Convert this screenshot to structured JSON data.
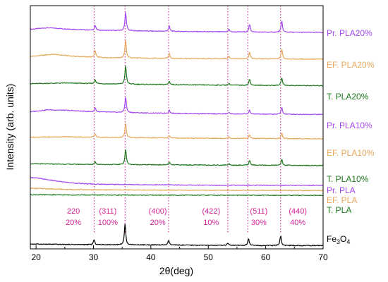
{
  "chart_data": {
    "type": "line",
    "xlabel": "2θ(deg)",
    "ylabel": "Intensity (arb. units)",
    "xlim": [
      19,
      70
    ],
    "xticks": [
      "20",
      "30",
      "40",
      "50",
      "60",
      "70"
    ],
    "grid": false,
    "reference_lines": [
      30.1,
      35.5,
      43.1,
      53.4,
      56.9,
      62.6
    ],
    "series": [
      {
        "name": "Pr. PLA20%",
        "color": "#a347f0",
        "offset": 9.65,
        "background": [
          [
            19,
            0.18
          ],
          [
            22,
            0.25
          ],
          [
            25,
            0.2
          ],
          [
            30,
            0.14
          ],
          [
            40,
            0.1
          ],
          [
            50,
            0.07
          ],
          [
            60,
            0.05
          ],
          [
            70,
            0.04
          ]
        ],
        "peaks": [
          [
            30.3,
            0.22
          ],
          [
            35.6,
            0.85
          ],
          [
            43.2,
            0.22
          ],
          [
            53.6,
            0.12
          ],
          [
            57.2,
            0.35
          ],
          [
            62.8,
            0.52
          ]
        ]
      },
      {
        "name": "EF. PLA20%",
        "color": "#e7a85b",
        "offset": 8.45,
        "background": [
          [
            19,
            0.15
          ],
          [
            23,
            0.25
          ],
          [
            27,
            0.15
          ],
          [
            32,
            0.1
          ],
          [
            40,
            0.07
          ],
          [
            50,
            0.05
          ],
          [
            60,
            0.04
          ],
          [
            70,
            0.03
          ]
        ],
        "peaks": [
          [
            30.3,
            0.28
          ],
          [
            35.6,
            0.82
          ],
          [
            43.2,
            0.22
          ],
          [
            53.6,
            0.1
          ],
          [
            57.2,
            0.32
          ],
          [
            62.8,
            0.46
          ]
        ]
      },
      {
        "name": "T. PLA20%",
        "color": "#1c7a1c",
        "offset": 7.25,
        "background": [
          [
            19,
            0.12
          ],
          [
            25,
            0.15
          ],
          [
            35,
            0.1
          ],
          [
            50,
            0.06
          ],
          [
            70,
            0.03
          ]
        ],
        "peaks": [
          [
            30.3,
            0.18
          ],
          [
            35.6,
            0.85
          ],
          [
            43.2,
            0.16
          ],
          [
            53.6,
            0.08
          ],
          [
            57.2,
            0.28
          ],
          [
            62.8,
            0.36
          ]
        ]
      },
      {
        "name": "Pr. PLA10%",
        "color": "#a347f0",
        "offset": 5.95,
        "background": [
          [
            19,
            0.15
          ],
          [
            22,
            0.24
          ],
          [
            25,
            0.22
          ],
          [
            30,
            0.15
          ],
          [
            40,
            0.09
          ],
          [
            50,
            0.06
          ],
          [
            60,
            0.04
          ],
          [
            70,
            0.03
          ]
        ],
        "peaks": [
          [
            30.3,
            0.18
          ],
          [
            35.6,
            0.72
          ],
          [
            43.2,
            0.14
          ],
          [
            53.6,
            0.08
          ],
          [
            57.2,
            0.18
          ],
          [
            62.8,
            0.32
          ]
        ]
      },
      {
        "name": "EF. PLA10%",
        "color": "#e7a85b",
        "offset": 4.85,
        "background": [
          [
            19,
            0.1
          ],
          [
            25,
            0.12
          ],
          [
            35,
            0.08
          ],
          [
            50,
            0.05
          ],
          [
            70,
            0.03
          ]
        ],
        "peaks": [
          [
            30.3,
            0.15
          ],
          [
            35.6,
            0.66
          ],
          [
            43.2,
            0.12
          ],
          [
            53.6,
            0.06
          ],
          [
            57.2,
            0.16
          ],
          [
            62.8,
            0.24
          ]
        ]
      },
      {
        "name": "T. PLA10%",
        "color": "#1c7a1c",
        "offset": 3.65,
        "background": [
          [
            19,
            0.1
          ],
          [
            25,
            0.08
          ],
          [
            35,
            0.06
          ],
          [
            50,
            0.04
          ],
          [
            70,
            0.02
          ]
        ],
        "peaks": [
          [
            30.3,
            0.12
          ],
          [
            35.6,
            0.7
          ],
          [
            43.2,
            0.12
          ],
          [
            53.6,
            0.06
          ],
          [
            57.2,
            0.22
          ],
          [
            62.8,
            0.28
          ]
        ]
      },
      {
        "name": "Pr. PLA",
        "color": "#a347f0",
        "offset": 2.73,
        "background": [
          [
            19,
            0.4
          ],
          [
            20,
            0.38
          ],
          [
            22,
            0.3
          ],
          [
            24,
            0.22
          ],
          [
            26,
            0.16
          ],
          [
            28,
            0.12
          ],
          [
            30,
            0.1
          ],
          [
            35,
            0.08
          ],
          [
            50,
            0.05
          ],
          [
            70,
            0.04
          ]
        ],
        "peaks": []
      },
      {
        "name": "EF. PLA",
        "color": "#e7a85b",
        "offset": 2.52,
        "background": [
          [
            19,
            0.12
          ],
          [
            22,
            0.1
          ],
          [
            25,
            0.07
          ],
          [
            30,
            0.05
          ],
          [
            50,
            0.03
          ],
          [
            70,
            0.02
          ]
        ],
        "peaks": []
      },
      {
        "name": "T. PLA",
        "color": "#1c7a1c",
        "offset": 2.3,
        "background": [
          [
            19,
            0.05
          ],
          [
            25,
            0.04
          ],
          [
            40,
            0.03
          ],
          [
            70,
            0.02
          ]
        ],
        "peaks": []
      },
      {
        "name": "Fe3O4",
        "color": "#000000",
        "offset": 0.0,
        "background": [
          [
            19,
            0.12
          ],
          [
            25,
            0.1
          ],
          [
            30,
            0.09
          ],
          [
            40,
            0.08
          ],
          [
            50,
            0.06
          ],
          [
            60,
            0.05
          ],
          [
            70,
            0.05
          ]
        ],
        "peaks": [
          [
            30.1,
            0.22
          ],
          [
            35.5,
            0.95
          ],
          [
            43.1,
            0.2
          ],
          [
            53.4,
            0.1
          ],
          [
            57.0,
            0.33
          ],
          [
            62.6,
            0.45
          ]
        ]
      }
    ],
    "series_labels": {
      "Pr. PLA20%": "Pr. PLA20%",
      "EF. PLA20%": "EF. PLA20%",
      "T. PLA20%": "T. PLA20%",
      "Pr. PLA10%": "Pr. PLA10%",
      "EF. PLA10%": "EF. PLA10%",
      "T. PLA10%": "T. PLA10%",
      "Pr. PLA": "Pr. PLA",
      "EF. PLA": "EF. PLA",
      "T. PLA": "T. PLA",
      "Fe3O4": "Fe3O4"
    },
    "fe3o4_label": {
      "main": "Fe",
      "sub1": "3",
      "mid": "O",
      "sub2": "4"
    },
    "peak_annotations": [
      {
        "x": 26.5,
        "hkl": "220",
        "intensity": "20%"
      },
      {
        "x": 32.5,
        "hkl": "(311)",
        "intensity": "100%"
      },
      {
        "x": 41.2,
        "hkl": "(400)",
        "intensity": "20%"
      },
      {
        "x": 50.5,
        "hkl": "(422)",
        "intensity": "10%"
      },
      {
        "x": 58.8,
        "hkl": "(511)",
        "intensity": "30%"
      },
      {
        "x": 65.6,
        "hkl": "(440)",
        "intensity": "40%"
      }
    ]
  }
}
